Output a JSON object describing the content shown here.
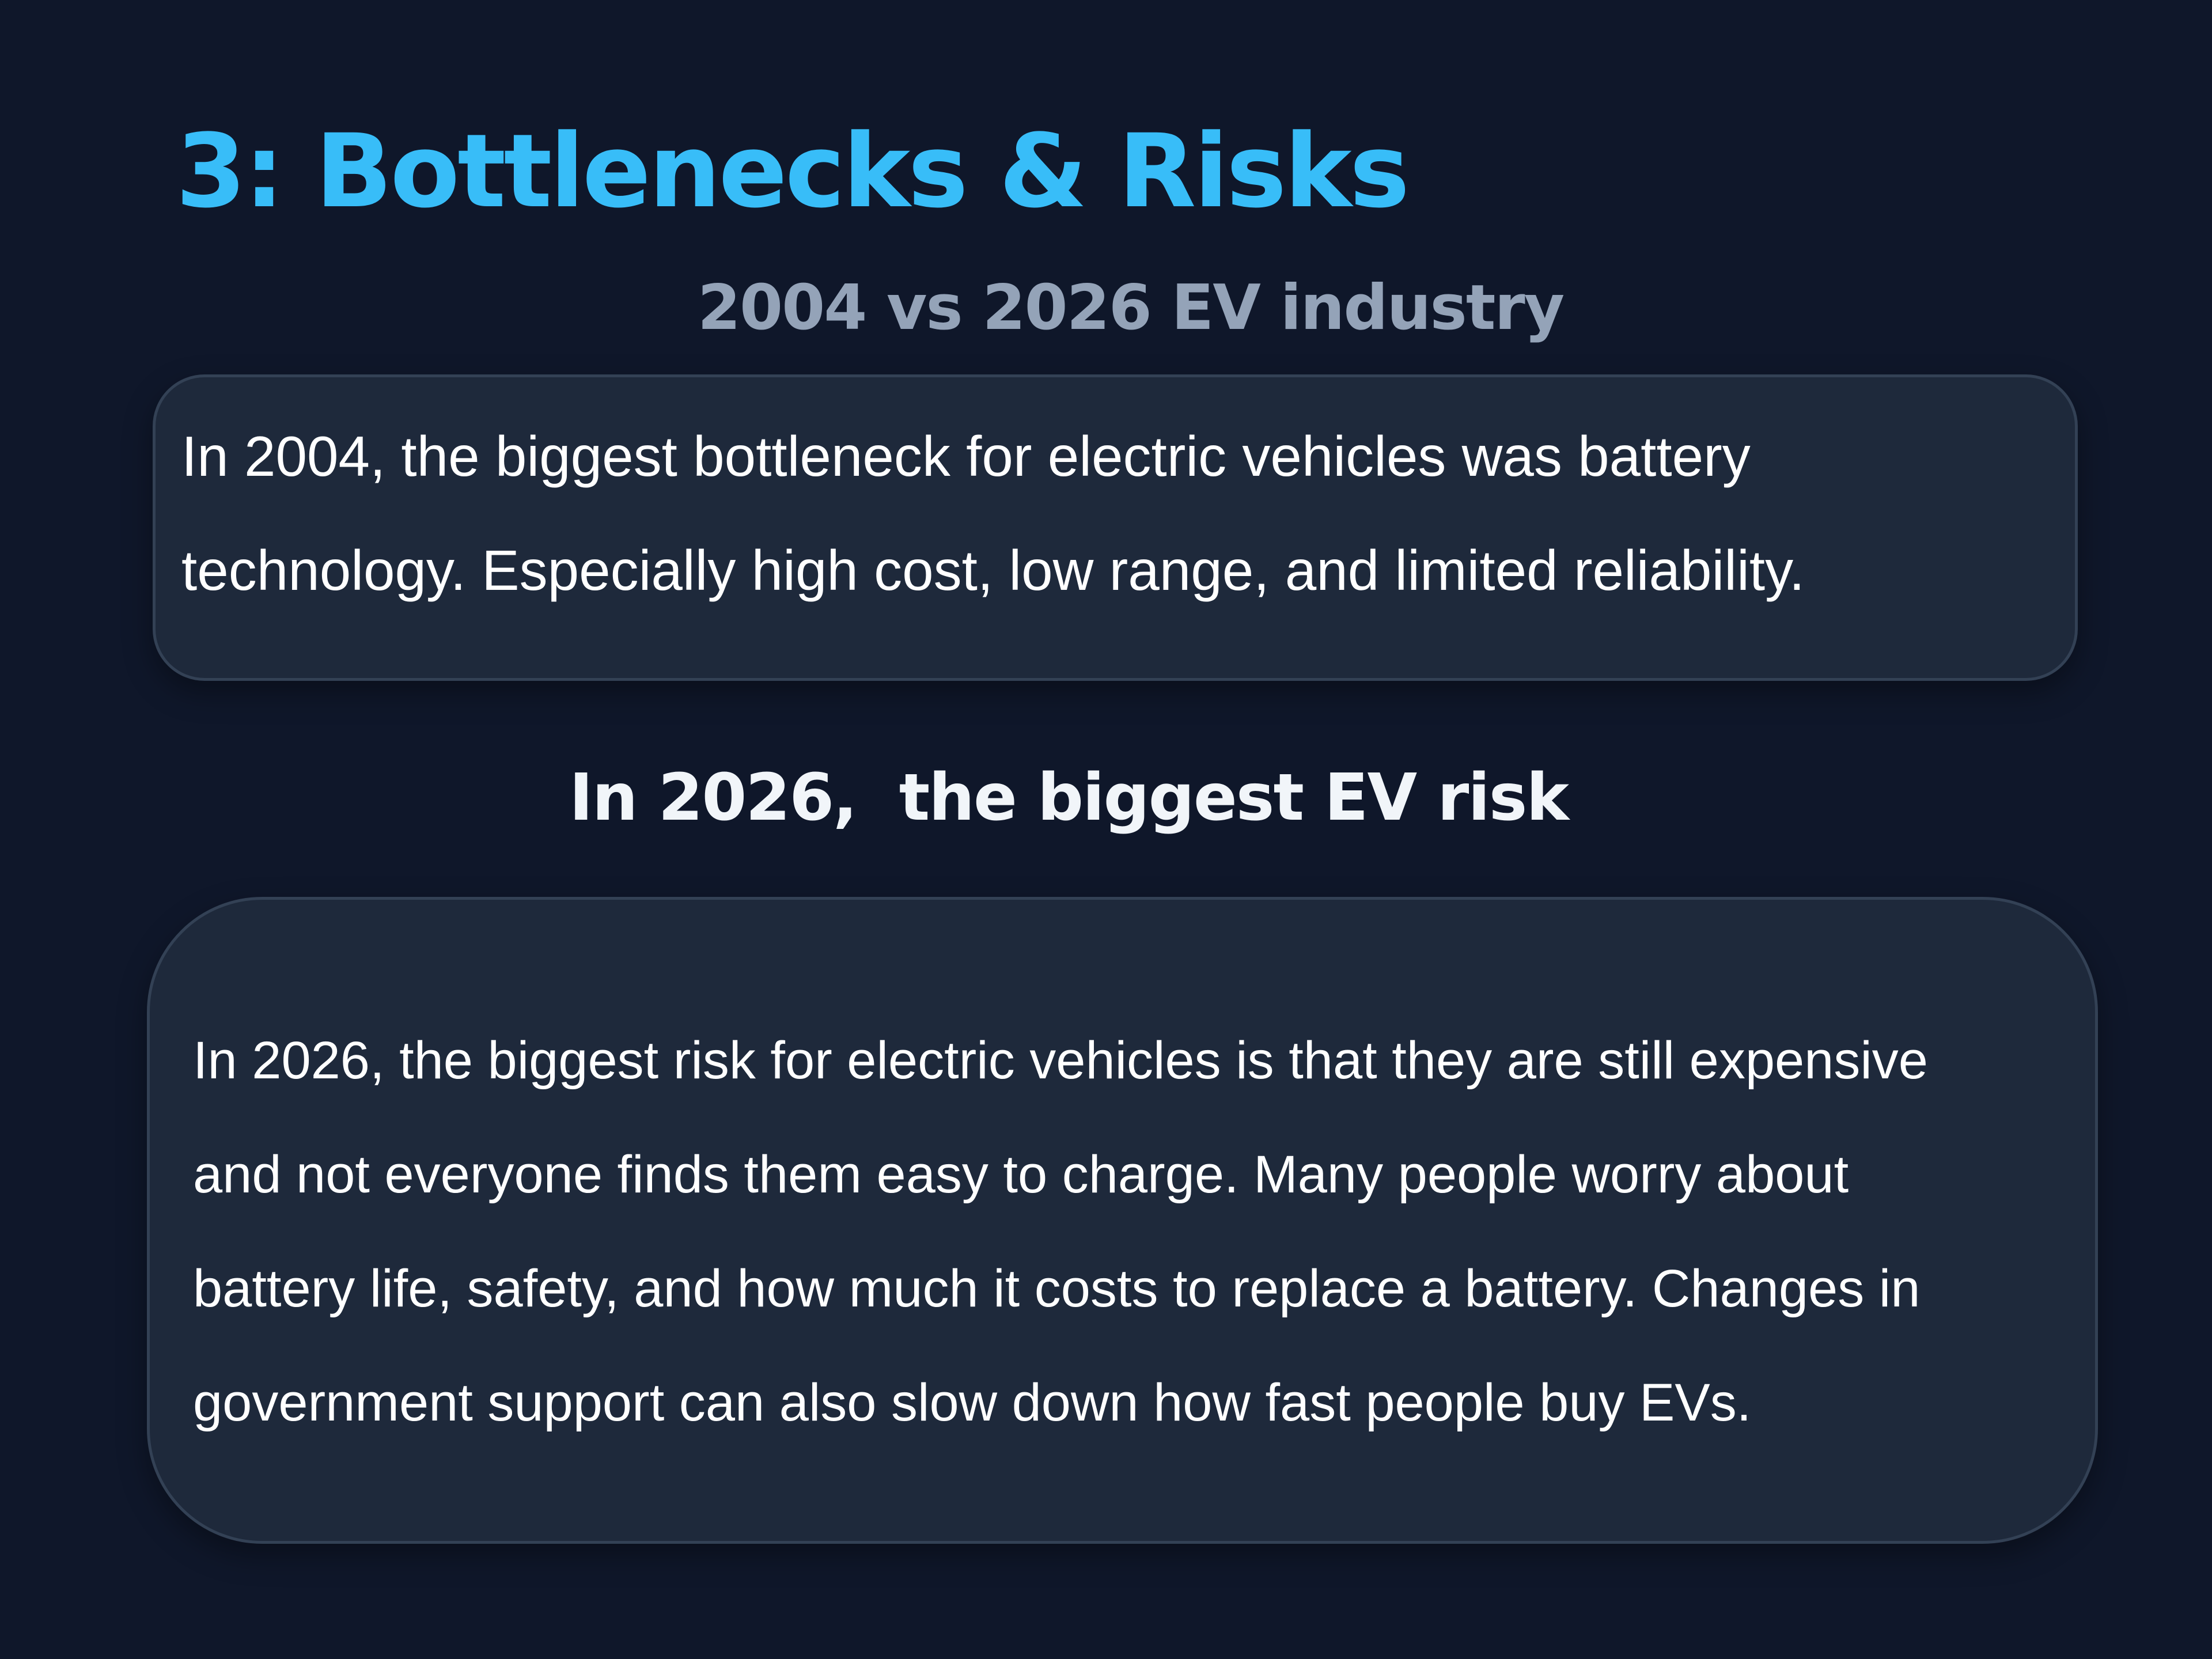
{
  "slide": {
    "title": "3: Bottlenecks & Risks",
    "subtitle": "2004 vs 2026 EV industry"
  },
  "card_2004": {
    "text": "In 2004, the biggest bottleneck for electric vehicles was battery\ntechnology. Especially high cost, low range, and limited reliability."
  },
  "section_2026": {
    "heading": "In 2026,  the biggest EV risk"
  },
  "card_2026": {
    "text": "In 2026, the biggest risk for electric vehicles is that they are still expensive\nand not everyone finds them easy to charge. Many people worry about\nbattery life, safety, and how much it costs to replace a battery. Changes in\ngovernment support can also slow down how fast people buy EVs."
  },
  "colors": {
    "background": "#0f172a",
    "title": "#38bdf8",
    "subtitle": "#94a3b8",
    "card_background": "#1e293b",
    "card_border": "#334155",
    "body_text": "#ffffff"
  }
}
